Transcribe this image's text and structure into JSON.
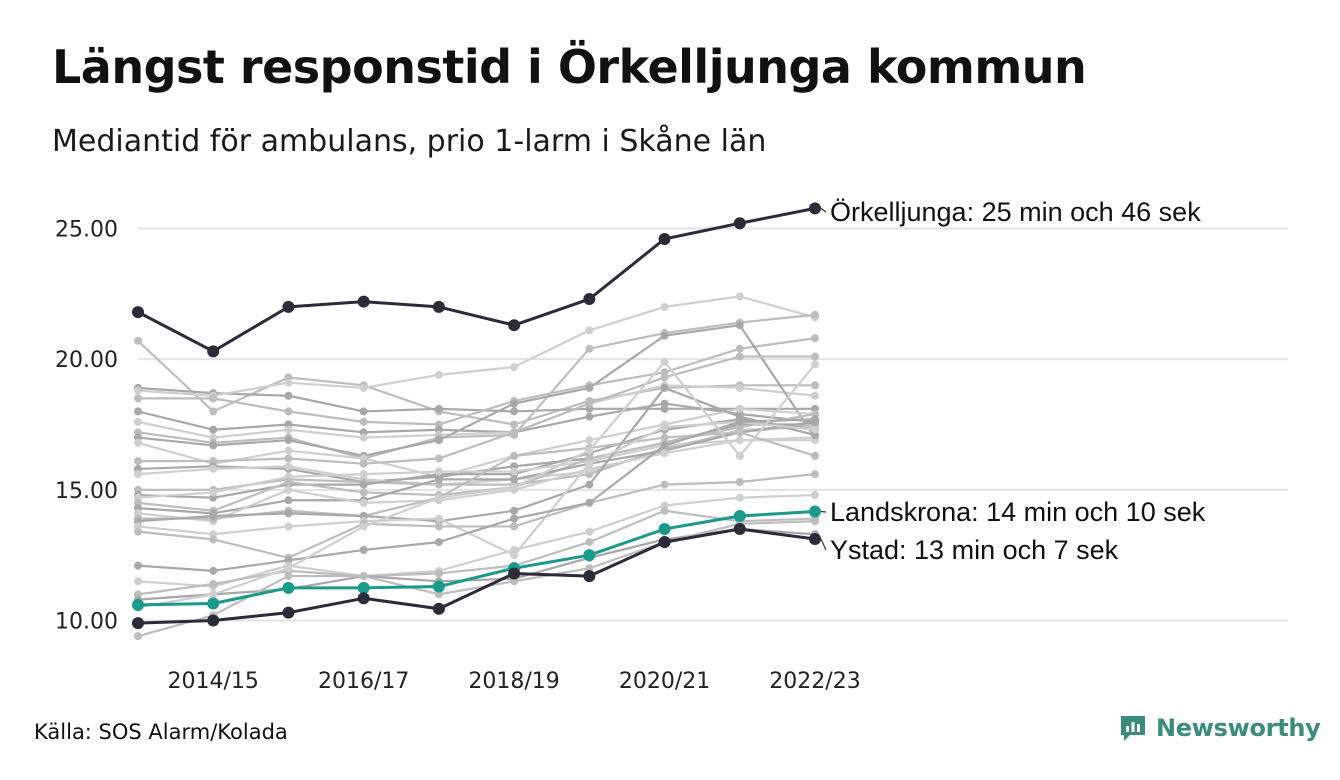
{
  "header": {
    "title": "Längst responstid i Örkelljunga kommun",
    "subtitle": "Mediantid för ambulans, prio 1-larm i Skåne län"
  },
  "footer": {
    "source": "Källa: SOS Alarm/Kolada",
    "logo_text": "Newsworthy"
  },
  "colors": {
    "highlight_dark": "#2b2b3a",
    "highlight_teal": "#1a9a8a",
    "background_series": [
      "#bdbdbd",
      "#a8a8a8",
      "#cfcfcf"
    ],
    "gridline": "#e3e3e3",
    "logo": "#3a8d7c"
  },
  "chart_data": {
    "type": "line",
    "x": [
      "2013/14",
      "2014/15",
      "2015/16",
      "2016/17",
      "2017/18",
      "2018/19",
      "2019/20",
      "2020/21",
      "2021/22",
      "2022/23"
    ],
    "x_tick_labels": [
      "2014/15",
      "2016/17",
      "2018/19",
      "2020/21",
      "2022/23"
    ],
    "y_ticks": [
      "10.00",
      "15.00",
      "20.00",
      "25.00"
    ],
    "ylim": [
      9.2,
      26.3
    ],
    "grid": true,
    "legend": "none",
    "highlighted_series": [
      {
        "name": "Örkelljunga",
        "label": "Örkelljunga: 25 min och 46 sek",
        "color": "#2b2b3a",
        "values": [
          21.8,
          20.3,
          22.0,
          22.2,
          22.0,
          21.3,
          22.3,
          24.6,
          25.2,
          25.77
        ]
      },
      {
        "name": "Landskrona",
        "label": "Landskrona: 14 min och 10 sek",
        "color": "#1a9a8a",
        "values": [
          10.6,
          10.65,
          11.25,
          11.25,
          11.3,
          12.0,
          12.5,
          13.5,
          14.0,
          14.17
        ]
      },
      {
        "name": "Ystad",
        "label": "Ystad: 13 min och 7 sek",
        "color": "#2b2b3a",
        "values": [
          9.9,
          10.0,
          10.3,
          10.85,
          10.45,
          11.8,
          11.7,
          13.0,
          13.5,
          13.12
        ]
      }
    ],
    "other_series": [
      [
        20.7,
        18.0,
        19.3,
        19.0,
        18.0,
        17.5,
        18.4,
        18.9,
        19.0,
        19.0
      ],
      [
        18.9,
        18.7,
        18.6,
        18.0,
        18.1,
        18.0,
        18.1,
        18.1,
        18.1,
        18.1
      ],
      [
        18.8,
        18.6,
        19.1,
        18.9,
        19.4,
        19.7,
        21.1,
        22.0,
        22.4,
        21.6
      ],
      [
        18.5,
        18.5,
        18.0,
        17.6,
        17.5,
        18.4,
        19.0,
        19.5,
        20.4,
        20.8
      ],
      [
        18.0,
        17.3,
        17.5,
        17.2,
        17.3,
        17.2,
        17.8,
        18.3,
        17.9,
        17.6
      ],
      [
        17.6,
        17.0,
        17.3,
        17.0,
        17.1,
        17.2,
        18.3,
        19.0,
        18.9,
        18.6
      ],
      [
        17.2,
        16.8,
        17.0,
        16.2,
        17.0,
        17.1,
        20.4,
        21.0,
        21.4,
        21.7
      ],
      [
        17.0,
        16.7,
        16.9,
        16.3,
        16.9,
        18.3,
        18.9,
        20.9,
        21.3,
        17.0
      ],
      [
        16.8,
        16.0,
        16.5,
        16.2,
        15.5,
        16.3,
        16.9,
        17.5,
        18.1,
        17.9
      ],
      [
        16.1,
        16.1,
        16.2,
        16.0,
        16.2,
        17.2,
        18.3,
        19.3,
        20.1,
        20.1
      ],
      [
        15.8,
        15.9,
        15.8,
        15.3,
        15.5,
        15.9,
        16.2,
        16.8,
        17.5,
        17.5
      ],
      [
        15.6,
        15.8,
        15.9,
        15.4,
        15.2,
        15.4,
        15.7,
        16.5,
        17.3,
        17.4
      ],
      [
        15.0,
        15.0,
        15.4,
        15.3,
        15.2,
        15.2,
        15.6,
        16.6,
        17.2,
        17.5
      ],
      [
        14.8,
        14.7,
        15.2,
        15.2,
        15.6,
        15.6,
        16.4,
        17.3,
        17.7,
        17.3
      ],
      [
        14.7,
        14.9,
        15.5,
        15.6,
        15.7,
        15.7,
        16.1,
        16.7,
        16.9,
        17.0
      ],
      [
        14.5,
        14.2,
        15.3,
        14.9,
        14.8,
        15.1,
        16.2,
        16.8,
        17.4,
        17.9
      ],
      [
        14.3,
        14.1,
        14.6,
        14.6,
        15.4,
        15.4,
        16.0,
        16.5,
        17.2,
        17.6
      ],
      [
        14.1,
        13.8,
        15.0,
        14.5,
        14.6,
        15.0,
        15.8,
        16.4,
        16.9,
        16.9
      ],
      [
        13.9,
        13.9,
        14.2,
        14.0,
        14.7,
        16.3,
        16.6,
        17.0,
        17.2,
        16.3
      ],
      [
        13.8,
        14.0,
        14.1,
        14.0,
        13.8,
        14.2,
        15.2,
        18.9,
        17.8,
        17.1
      ],
      [
        13.6,
        13.3,
        13.6,
        13.8,
        13.9,
        12.5,
        16.0,
        17.4,
        17.6,
        17.3
      ],
      [
        13.4,
        13.1,
        12.4,
        13.7,
        13.6,
        13.6,
        14.5,
        15.2,
        15.3,
        15.6
      ],
      [
        12.1,
        11.9,
        12.3,
        12.7,
        13.0,
        13.9,
        14.5,
        16.7,
        17.6,
        17.7
      ],
      [
        11.5,
        11.3,
        12.1,
        11.7,
        11.9,
        12.7,
        13.4,
        14.4,
        14.7,
        14.8
      ],
      [
        11.0,
        11.4,
        11.9,
        11.7,
        11.8,
        12.1,
        13.0,
        14.2,
        13.8,
        13.9
      ],
      [
        10.8,
        11.0,
        11.2,
        11.7,
        11.5,
        11.6,
        12.4,
        13.1,
        13.5,
        13.3
      ],
      [
        10.5,
        11.0,
        12.0,
        13.6,
        14.7,
        15.1,
        16.5,
        19.9,
        16.3,
        19.8
      ],
      [
        9.4,
        10.2,
        11.7,
        11.7,
        11.0,
        11.5,
        12.0,
        13.0,
        13.7,
        13.8
      ]
    ]
  }
}
